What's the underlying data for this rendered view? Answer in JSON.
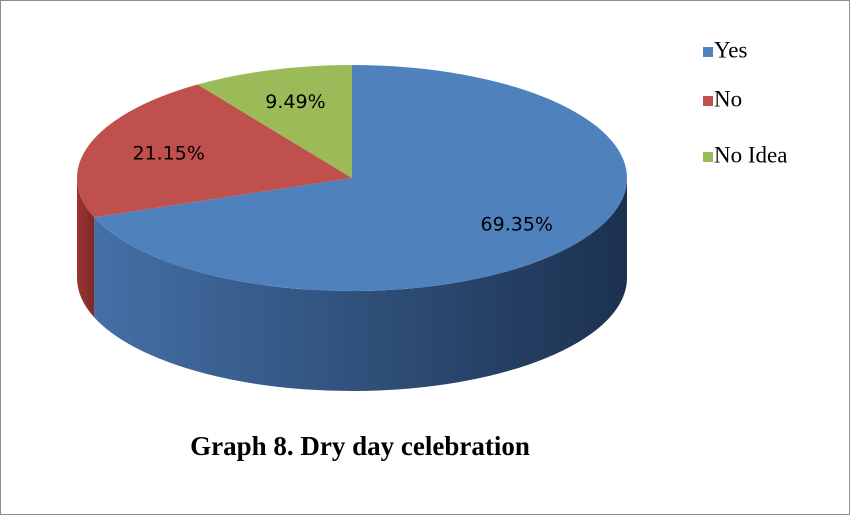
{
  "chart_data": {
    "type": "pie",
    "title": "Graph 8. Dry day celebration",
    "categories": [
      "Yes",
      "No",
      "No Idea"
    ],
    "values": [
      69.35,
      21.15,
      9.49
    ],
    "value_labels": [
      "69.35%",
      "21.15%",
      "9.49%"
    ],
    "colors": [
      "#4f81bd",
      "#c0504d",
      "#9bbb59"
    ],
    "legend": "right"
  }
}
